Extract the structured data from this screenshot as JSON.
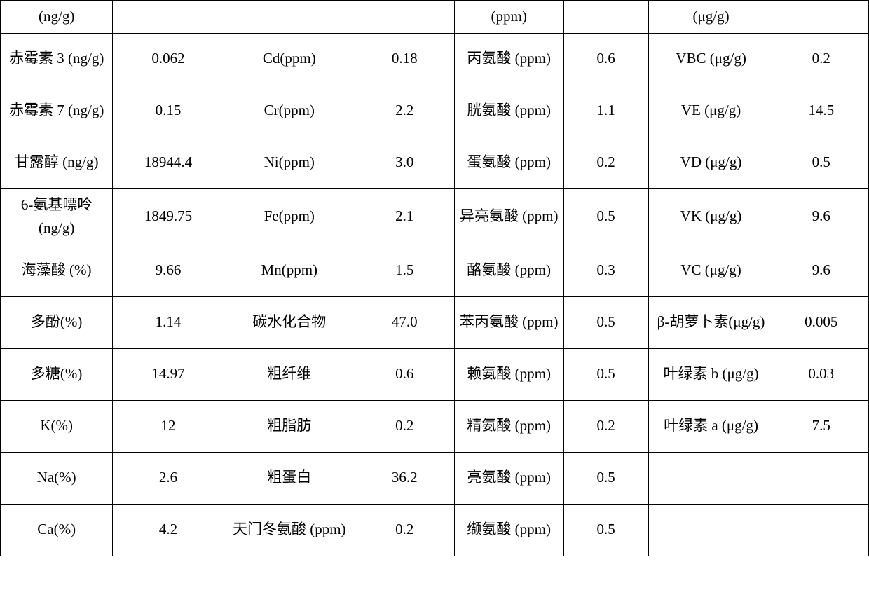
{
  "table": {
    "font_size": 21,
    "border_color": "#000000",
    "background_color": "#ffffff",
    "text_color": "#000000",
    "rows": [
      {
        "c1": "(ng/g)",
        "c2": "",
        "c3": "",
        "c4": "",
        "c5": "(ppm)",
        "c6": "",
        "c7": "(μg/g)",
        "c8": ""
      },
      {
        "c1": "赤霉素 3 (ng/g)",
        "c2": "0.062",
        "c3": "Cd(ppm)",
        "c4": "0.18",
        "c5": "丙氨酸 (ppm)",
        "c6": "0.6",
        "c7": "VBC (μg/g)",
        "c8": "0.2"
      },
      {
        "c1": "赤霉素 7 (ng/g)",
        "c2": "0.15",
        "c3": "Cr(ppm)",
        "c4": "2.2",
        "c5": "胱氨酸 (ppm)",
        "c6": "1.1",
        "c7": "VE (μg/g)",
        "c8": "14.5"
      },
      {
        "c1": "甘露醇 (ng/g)",
        "c2": "18944.4",
        "c3": "Ni(ppm)",
        "c4": "3.0",
        "c5": "蛋氨酸 (ppm)",
        "c6": "0.2",
        "c7": "VD (μg/g)",
        "c8": "0.5"
      },
      {
        "c1": "6-氨基嘌呤(ng/g)",
        "c2": "1849.75",
        "c3": "Fe(ppm)",
        "c4": "2.1",
        "c5": "异亮氨酸 (ppm)",
        "c6": "0.5",
        "c7": "VK (μg/g)",
        "c8": "9.6"
      },
      {
        "c1": "海藻酸 (%)",
        "c2": "9.66",
        "c3": "Mn(ppm)",
        "c4": "1.5",
        "c5": "酪氨酸 (ppm)",
        "c6": "0.3",
        "c7": "VC (μg/g)",
        "c8": "9.6"
      },
      {
        "c1": "多酚(%)",
        "c2": "1.14",
        "c3": "碳水化合物",
        "c4": "47.0",
        "c5": "苯丙氨酸 (ppm)",
        "c6": "0.5",
        "c7": "β-胡萝卜素(μg/g)",
        "c8": "0.005"
      },
      {
        "c1": "多糖(%)",
        "c2": "14.97",
        "c3": "粗纤维",
        "c4": "0.6",
        "c5": "赖氨酸 (ppm)",
        "c6": "0.5",
        "c7": "叶绿素 b (μg/g)",
        "c8": "0.03"
      },
      {
        "c1": "K(%)",
        "c2": "12",
        "c3": "粗脂肪",
        "c4": "0.2",
        "c5": "精氨酸 (ppm)",
        "c6": "0.2",
        "c7": "叶绿素 a (μg/g)",
        "c8": "7.5"
      },
      {
        "c1": "Na(%)",
        "c2": "2.6",
        "c3": "粗蛋白",
        "c4": "36.2",
        "c5": "亮氨酸 (ppm)",
        "c6": "0.5",
        "c7": "",
        "c8": ""
      },
      {
        "c1": "Ca(%)",
        "c2": "4.2",
        "c3": "天门冬氨酸 (ppm)",
        "c4": "0.2",
        "c5": "缬氨酸 (ppm)",
        "c6": "0.5",
        "c7": "",
        "c8": ""
      }
    ]
  }
}
